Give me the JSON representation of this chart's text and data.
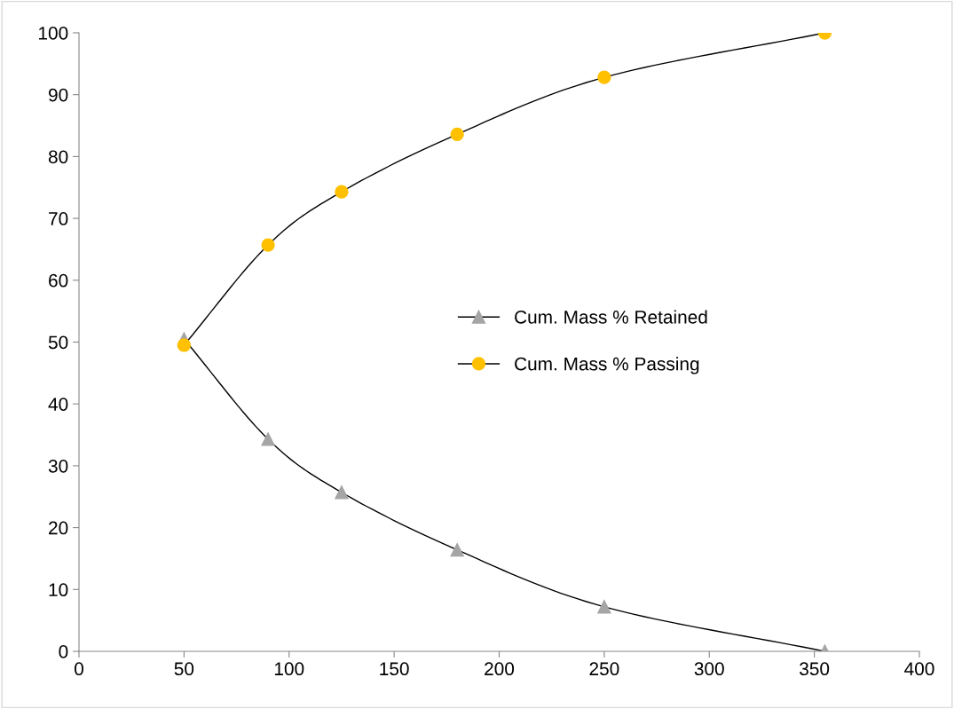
{
  "chart_data": {
    "type": "line",
    "series": [
      {
        "name": "Cum. Mass % Retained",
        "color": "#a5a5a5",
        "marker": "triangle",
        "x": [
          50,
          90,
          125,
          180,
          250,
          355
        ],
        "values": [
          50.5,
          34.3,
          25.7,
          16.4,
          7.2,
          0
        ]
      },
      {
        "name": "Cum. Mass % Passing",
        "color": "#ffc000",
        "marker": "circle",
        "x": [
          50,
          90,
          125,
          180,
          250,
          355
        ],
        "values": [
          49.5,
          65.7,
          74.3,
          83.6,
          92.8,
          100
        ]
      }
    ],
    "xlim": [
      0,
      400
    ],
    "xticks": [
      0,
      50,
      100,
      150,
      200,
      250,
      300,
      350,
      400
    ],
    "ylim": [
      0,
      100
    ],
    "yticks": [
      0,
      10,
      20,
      30,
      40,
      50,
      60,
      70,
      80,
      90,
      100
    ],
    "grid": false,
    "legend": "center",
    "line_style": "solid"
  }
}
